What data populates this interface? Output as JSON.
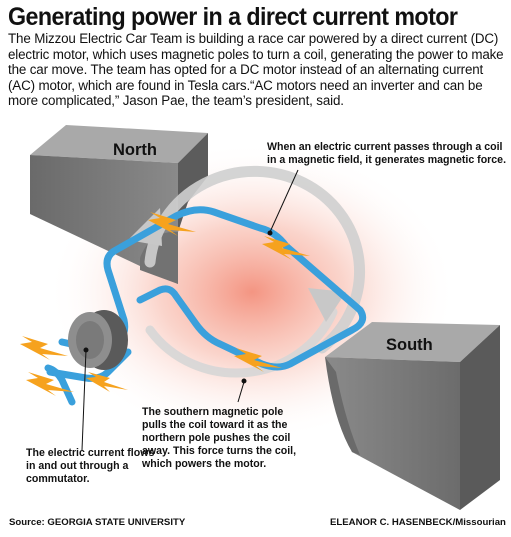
{
  "title": "Generating power in a direct current motor",
  "intro": "The Mizzou Electric Car Team is building a race car powered by a direct current (DC) electric motor, which uses magnetic poles to turn a coil, generating the power to make the car move. The team has opted for a DC motor instead of an alternating current (AC) motor, which are found in Tesla cars.“AC motors need an inverter and can be more complicated,” Jason Pae, the team’s president, said.",
  "diagram": {
    "north_label": "North",
    "south_label": "South",
    "annotation_force": "When an electric current passes through a coil in a magnetic field, it generates magnetic force.",
    "annotation_south": "The southern magnetic pole pulls the coil toward it as the northern pole pushes the coil away. This force turns the coil, which powers the motor.",
    "annotation_commutator": "The electric current flows in and out through a commutator."
  },
  "footer": {
    "source": "Source: GEORGIA STATE UNIVERSITY",
    "credit": "ELEANOR C. HASENBECK/Missourian"
  },
  "colors": {
    "wire": "#3aa0dc",
    "spark": "#f6a21e",
    "glow": "#f2826c",
    "magnet": "#7b7b7b",
    "arrow": "#cfcfcf"
  }
}
